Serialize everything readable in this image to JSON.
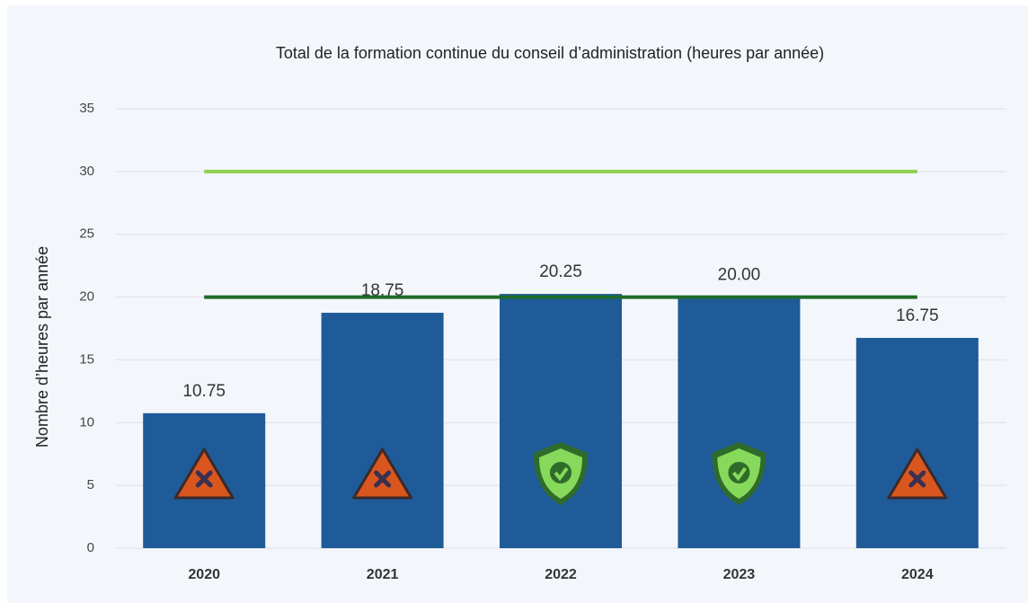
{
  "chart_data": {
    "type": "bar",
    "title": "Total de la formation continue du conseil d’administration (heures par année)",
    "y_label": "Nombre d’heures par année",
    "categories": [
      "2020",
      "2021",
      "2022",
      "2023",
      "2024"
    ],
    "values": [
      10.75,
      18.75,
      20.25,
      20,
      16.75
    ],
    "value_labels": [
      "10.75",
      "18.75",
      "20.25",
      "20.00",
      "16.75"
    ],
    "color": "#1f5b98",
    "ylim": [
      0,
      35
    ],
    "yticks": [
      0,
      5,
      10,
      15,
      20,
      25,
      30,
      35
    ],
    "grid": true,
    "reference_lines": [
      {
        "value": 30,
        "color": "#8ed150"
      },
      {
        "value": 20,
        "color": "#1f6b2a"
      }
    ]
  }
}
